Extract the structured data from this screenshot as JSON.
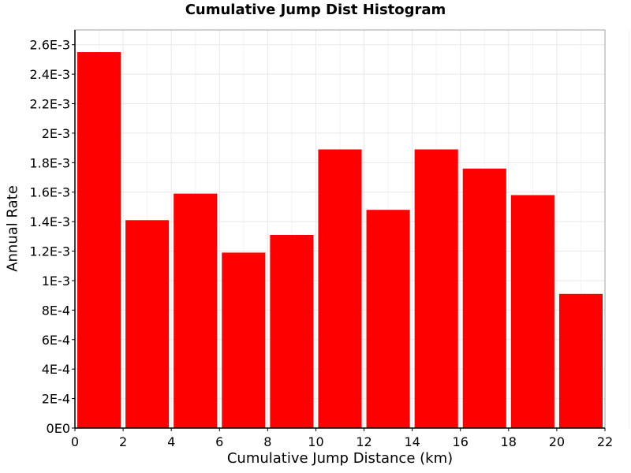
{
  "chart_data": {
    "type": "bar",
    "title": "Cumulative Jump Dist Histogram",
    "xlabel": "Cumulative Jump Distance (km)",
    "ylabel": "Annual Rate",
    "bin_width": 2,
    "x": [
      1,
      3,
      5,
      7,
      9,
      11,
      13,
      15,
      17,
      19,
      21
    ],
    "values": [
      0.00255,
      0.00141,
      0.00159,
      0.00119,
      0.00131,
      0.00189,
      0.00148,
      0.00189,
      0.00176,
      0.00158,
      0.00091
    ],
    "xlim": [
      0,
      22
    ],
    "ylim": [
      0,
      0.0027
    ],
    "xticks": [
      0,
      2,
      4,
      6,
      8,
      10,
      12,
      14,
      16,
      18,
      20,
      22
    ],
    "xtick_labels": [
      "0",
      "2",
      "4",
      "6",
      "8",
      "10",
      "12",
      "14",
      "16",
      "18",
      "20",
      "22"
    ],
    "yticks": [
      0,
      0.0002,
      0.0004,
      0.0006,
      0.0008,
      0.001,
      0.0012,
      0.0014,
      0.0016,
      0.0018,
      0.002,
      0.0022,
      0.0024,
      0.0026
    ],
    "ytick_labels": [
      "0E0",
      "2E-4",
      "4E-4",
      "6E-4",
      "8E-4",
      "1E-3",
      "1.2E-3",
      "1.4E-3",
      "1.6E-3",
      "1.8E-3",
      "2E-3",
      "2.2E-3",
      "2.4E-3",
      "2.6E-3"
    ],
    "grid": true,
    "bar_color": "#ff0000",
    "grid_color": "#e8e8e8"
  }
}
